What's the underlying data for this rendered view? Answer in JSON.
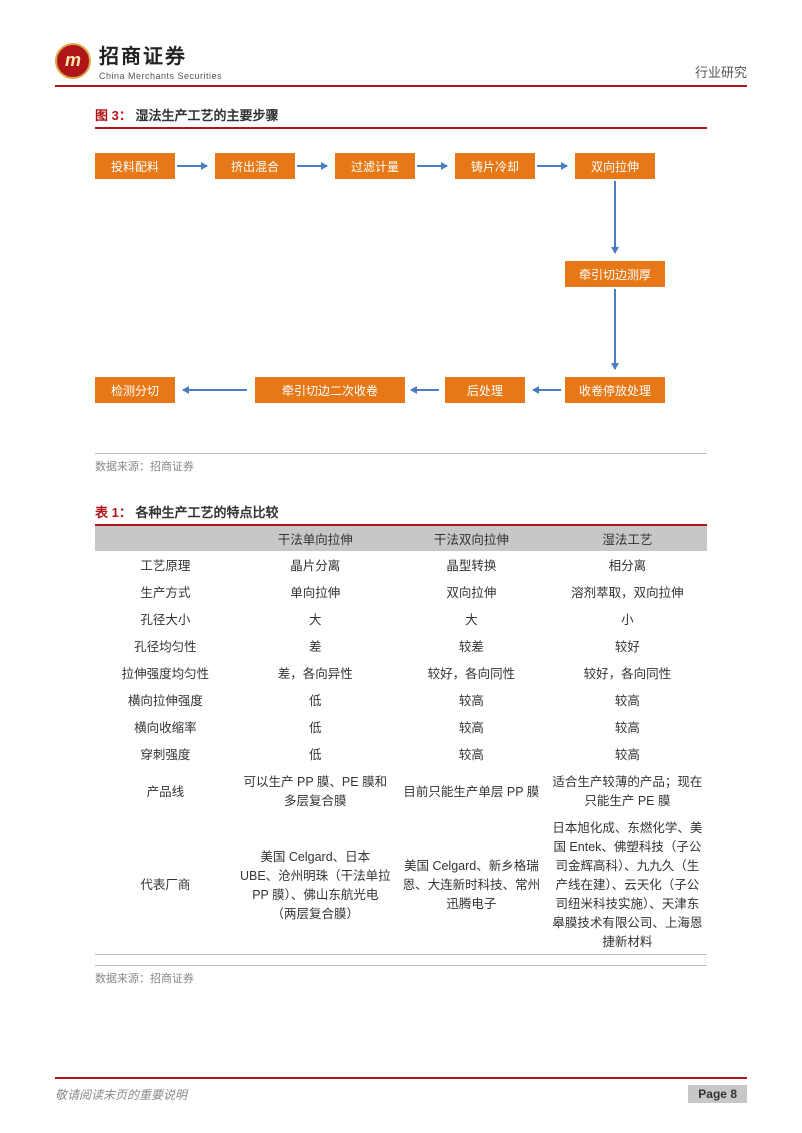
{
  "header": {
    "logo_glyph": "m",
    "company_cn": "招商证券",
    "company_en": "China Merchants Securities",
    "right_label": "行业研究"
  },
  "figure": {
    "label": "图 3：",
    "title": "湿法生产工艺的主要步骤",
    "source_prefix": "数据来源：",
    "source": "招商证券",
    "nodes": {
      "n1": "投料配料",
      "n2": "挤出混合",
      "n3": "过滤计量",
      "n4": "铸片冷却",
      "n5": "双向拉伸",
      "n6": "牵引切边测厚",
      "n7": "收卷停放处理",
      "n8": "后处理",
      "n9": "牵引切边二次收卷",
      "n10": "检测分切"
    },
    "box_color": "#e77817",
    "arrow_color": "#4a7cc4"
  },
  "table": {
    "label": "表 1：",
    "title": "各种生产工艺的特点比较",
    "source_prefix": "数据来源：",
    "source": "招商证券",
    "header_bg": "#c7c7c7",
    "columns": [
      "",
      "干法单向拉伸",
      "干法双向拉伸",
      "湿法工艺"
    ],
    "rows": [
      [
        "工艺原理",
        "晶片分离",
        "晶型转换",
        "相分离"
      ],
      [
        "生产方式",
        "单向拉伸",
        "双向拉伸",
        "溶剂萃取，双向拉伸"
      ],
      [
        "孔径大小",
        "大",
        "大",
        "小"
      ],
      [
        "孔径均匀性",
        "差",
        "较差",
        "较好"
      ],
      [
        "拉伸强度均匀性",
        "差，各向异性",
        "较好，各向同性",
        "较好，各向同性"
      ],
      [
        "横向拉伸强度",
        "低",
        "较高",
        "较高"
      ],
      [
        "横向收缩率",
        "低",
        "较高",
        "较高"
      ],
      [
        "穿刺强度",
        "低",
        "较高",
        "较高"
      ],
      [
        "产品线",
        "可以生产 PP 膜、PE 膜和多层复合膜",
        "目前只能生产单层 PP 膜",
        "适合生产较薄的产品；现在只能生产 PE 膜"
      ],
      [
        "代表厂商",
        "美国 Celgard、日本 UBE、沧州明珠（干法单拉 PP 膜）、佛山东航光电（两层复合膜）",
        "美国 Celgard、新乡格瑞恩、大连新时科技、常州迅腾电子",
        "日本旭化成、东燃化学、美国 Entek、佛塑科技（子公司金辉高科）、九九久（生产线在建）、云天化（子公司纽米科技实施）、天津东皋膜技术有限公司、上海恩捷新材料"
      ]
    ]
  },
  "footer": {
    "note": "敬请阅读末页的重要说明",
    "page": "Page 8"
  }
}
